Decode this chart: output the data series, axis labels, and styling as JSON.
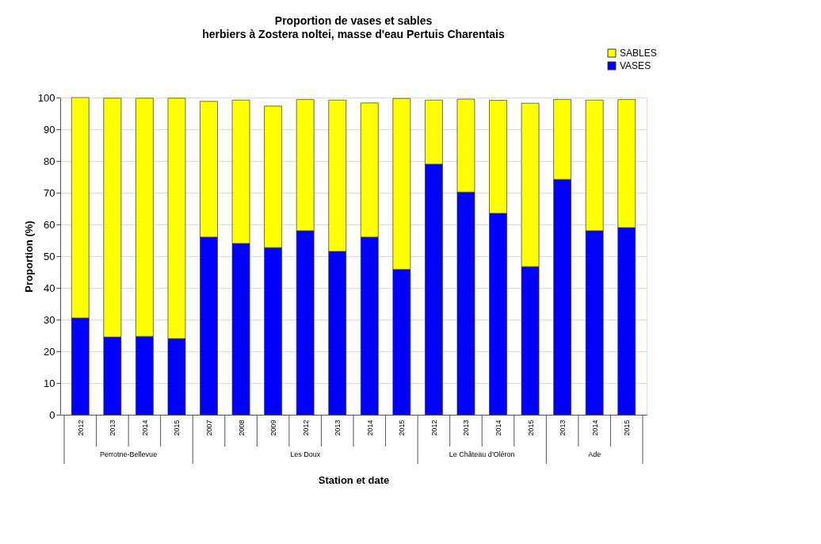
{
  "chart_data": {
    "type": "bar",
    "stacked": true,
    "title": "Proportion de vases et sables",
    "subtitle": "herbiers à Zostera noltei, masse d'eau Pertuis Charentais",
    "xlabel": "Station et date",
    "ylabel": "Proportion (%)",
    "categories": [
      "2012",
      "2013",
      "2014",
      "2015",
      "2007",
      "2008",
      "2009",
      "2012",
      "2013",
      "2014",
      "2015",
      "2012",
      "2013",
      "2014",
      "2015",
      "2013",
      "2014",
      "2015"
    ],
    "annotations": [
      "Perrotne-Bellevue",
      "Les Doux",
      "Le Château d'Oléron",
      "Ade"
    ],
    "series": [
      {
        "name": "VASES",
        "color": "#0000ff",
        "values": [
          30.5,
          24.5,
          24.7,
          24,
          56,
          54,
          52.7,
          58,
          51.5,
          56,
          45.8,
          79,
          70.2,
          63.5,
          46.7,
          74.2,
          58,
          59
        ]
      },
      {
        "name": "SABLES",
        "color": "#ffff00",
        "values": [
          69.5,
          75.3,
          75.1,
          75.8,
          42.8,
          45.2,
          44.6,
          41.4,
          47.7,
          42.3,
          53.9,
          20.2,
          29.3,
          35.6,
          51.5,
          25.2,
          41.2,
          40.4
        ]
      }
    ],
    "ylim": [
      0,
      100
    ],
    "yticks": [
      0,
      10,
      20,
      30,
      40,
      50,
      60,
      70,
      80,
      90,
      100
    ],
    "grid": "y",
    "legend": "top right"
  }
}
